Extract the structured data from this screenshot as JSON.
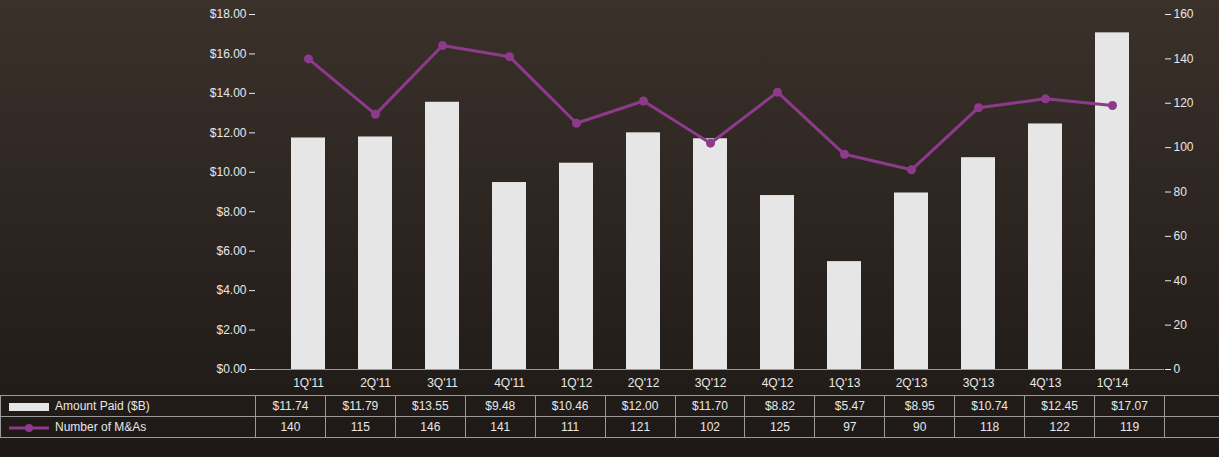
{
  "chart_data": {
    "type": "bar",
    "categories": [
      "1Q'11",
      "2Q'11",
      "3Q'11",
      "4Q'11",
      "1Q'12",
      "2Q'12",
      "3Q'12",
      "4Q'12",
      "1Q'13",
      "2Q'13",
      "3Q'13",
      "4Q'13",
      "1Q'14"
    ],
    "series": [
      {
        "name": "Amount Paid ($B)",
        "type": "bar",
        "color": "#e6e6e6",
        "values": [
          11.74,
          11.79,
          13.55,
          9.48,
          10.46,
          12.0,
          11.7,
          8.82,
          5.47,
          8.95,
          10.74,
          12.45,
          17.07
        ],
        "value_labels": [
          "$11.74",
          "$11.79",
          "$13.55",
          "$9.48",
          "$10.46",
          "$12.00",
          "$11.70",
          "$8.82",
          "$5.47",
          "$8.95",
          "$10.74",
          "$12.45",
          "$17.07"
        ]
      },
      {
        "name": "Number of M&As",
        "type": "line",
        "color": "#8e3a8c",
        "marker": "circle",
        "axis": "y2",
        "values": [
          140,
          115,
          146,
          141,
          111,
          121,
          102,
          125,
          97,
          90,
          118,
          122,
          119
        ]
      }
    ],
    "ylim": [
      0,
      18
    ],
    "yticks": [
      {
        "value": 0,
        "label": "$0.00"
      },
      {
        "value": 2,
        "label": "$2.00"
      },
      {
        "value": 4,
        "label": "$4.00"
      },
      {
        "value": 6,
        "label": "$6.00"
      },
      {
        "value": 8,
        "label": "$8.00"
      },
      {
        "value": 10,
        "label": "$10.00"
      },
      {
        "value": 12,
        "label": "$12.00"
      },
      {
        "value": 14,
        "label": "$14.00"
      },
      {
        "value": 16,
        "label": "$16.00"
      },
      {
        "value": 18,
        "label": "$18.00"
      }
    ],
    "y2lim": [
      0,
      160
    ],
    "y2ticks": [
      0,
      20,
      40,
      60,
      80,
      100,
      120,
      140,
      160
    ],
    "legend": "bottom"
  }
}
